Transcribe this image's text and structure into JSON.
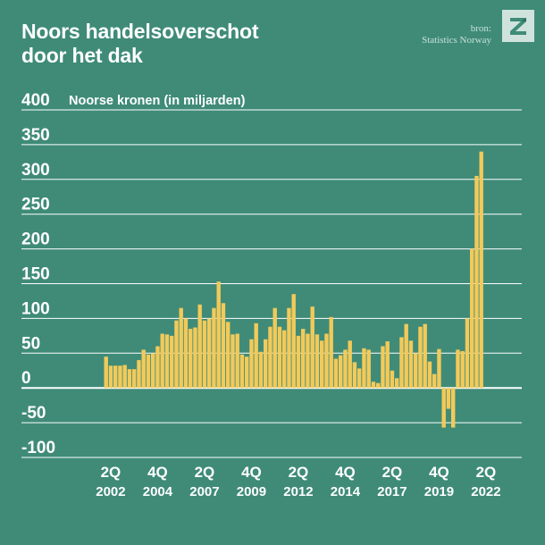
{
  "header": {
    "title_line1": "Noors handelsoverschot",
    "title_line2": "door het dak",
    "source_label": "bron:",
    "source_name": "Statistics Norway"
  },
  "logo": {
    "icon": "z-logo-icon",
    "letter": "Z"
  },
  "colors": {
    "background": "#3f8b78",
    "bar": "#f2ca5a",
    "grid": "#ffffff",
    "text": "#ffffff"
  },
  "chart_data": {
    "type": "bar",
    "title": "Noors handelsoverschot door het dak",
    "ylabel": "Noorse kronen (in miljarden)",
    "xlabel": "",
    "ylim": [
      -100,
      400
    ],
    "yticks": [
      400,
      350,
      300,
      250,
      200,
      150,
      100,
      50,
      0,
      -50,
      -100
    ],
    "grid": true,
    "start_quarter": "1Q 2002",
    "x_tick_labels": [
      {
        "quarter": "2Q",
        "year": "2002",
        "index": 1
      },
      {
        "quarter": "4Q",
        "year": "2004",
        "index": 11
      },
      {
        "quarter": "2Q",
        "year": "2007",
        "index": 21
      },
      {
        "quarter": "4Q",
        "year": "2009",
        "index": 31
      },
      {
        "quarter": "2Q",
        "year": "2012",
        "index": 41
      },
      {
        "quarter": "4Q",
        "year": "2014",
        "index": 51
      },
      {
        "quarter": "2Q",
        "year": "2017",
        "index": 61
      },
      {
        "quarter": "4Q",
        "year": "2019",
        "index": 71
      },
      {
        "quarter": "2Q",
        "year": "2022",
        "index": 81
      }
    ],
    "values": [
      45,
      32,
      32,
      32,
      33,
      27,
      27,
      40,
      55,
      48,
      50,
      60,
      78,
      77,
      75,
      97,
      115,
      100,
      85,
      87,
      120,
      97,
      100,
      115,
      153,
      122,
      95,
      77,
      78,
      48,
      45,
      70,
      93,
      52,
      70,
      88,
      115,
      88,
      83,
      115,
      135,
      75,
      85,
      78,
      117,
      77,
      68,
      78,
      102,
      42,
      47,
      55,
      68,
      37,
      28,
      57,
      55,
      9,
      7,
      60,
      67,
      25,
      14,
      73,
      92,
      68,
      50,
      88,
      92,
      38,
      20,
      56,
      -57,
      -30,
      -57,
      55,
      53,
      100,
      200,
      305,
      340
    ]
  }
}
